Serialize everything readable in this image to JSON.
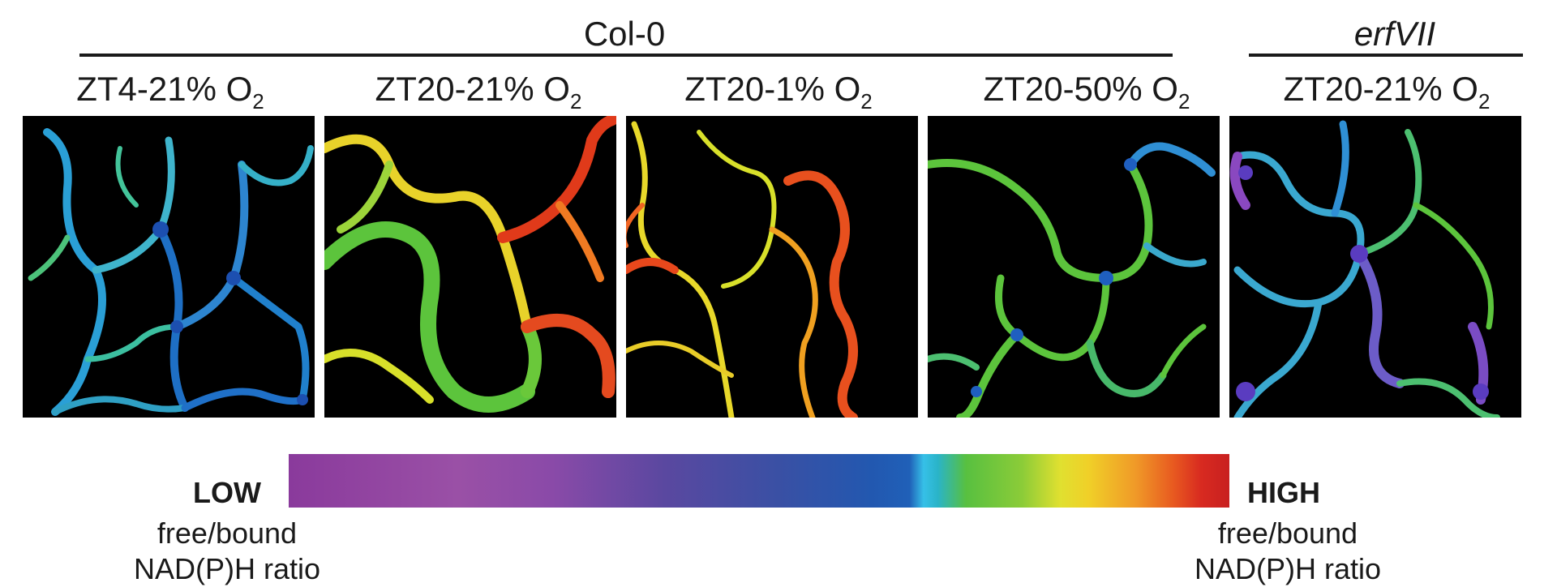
{
  "groups": {
    "wildtype": "Col-0",
    "mutant": "erfVII"
  },
  "conditions": [
    {
      "prefix": "ZT4-21% O",
      "sub": "2"
    },
    {
      "prefix": "ZT20-21% O",
      "sub": "2"
    },
    {
      "prefix": "ZT20-1% O",
      "sub": "2"
    },
    {
      "prefix": "ZT20-50% O",
      "sub": "2"
    },
    {
      "prefix": "ZT20-21% O",
      "sub": "2"
    }
  ],
  "colorbar": {
    "low_label": "LOW",
    "high_label": "HIGH",
    "caption_line1": "free/bound",
    "caption_line2": "NAD(P)H ratio"
  }
}
